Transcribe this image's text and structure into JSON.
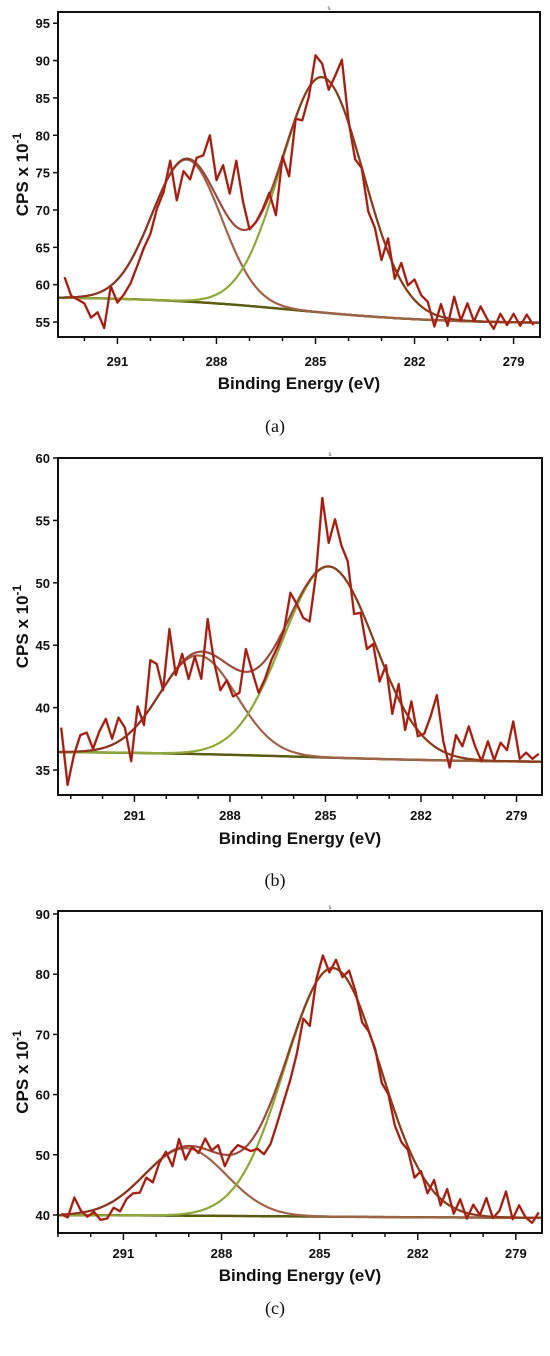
{
  "colors": {
    "raw": "#c0291c",
    "envelope": "#8a2a1a",
    "peak_cc": "#8fa83a",
    "peak_oc": "#a0634a",
    "background": "#5a5a10"
  },
  "chart_data": [
    {
      "type": "line",
      "caption": "(a)",
      "xlabel": "Binding Energy (eV)",
      "ylabel": "CPS x 10",
      "ylabel_exp": "-1",
      "xlim": [
        292.8,
        278.2
      ],
      "ylim": [
        53.0,
        96.5
      ],
      "xticks": [
        291,
        288,
        285,
        282,
        279
      ],
      "yticks": [
        55,
        60,
        65,
        70,
        75,
        80,
        85,
        90,
        95
      ],
      "baseline": {
        "start": 58.4,
        "end": 54.8,
        "center": 285.6,
        "width": 2.2
      },
      "peaks": [
        {
          "center": 288.9,
          "height": 19.0,
          "sigma": 1.05
        },
        {
          "center": 284.8,
          "height": 31.5,
          "sigma": 1.25
        }
      ],
      "raw": [
        [
          292.6,
          61.0
        ],
        [
          292.4,
          58.5
        ],
        [
          292.2,
          58.0
        ],
        [
          292.0,
          57.5
        ],
        [
          291.8,
          55.6
        ],
        [
          291.6,
          56.3
        ],
        [
          291.4,
          54.2
        ],
        [
          291.2,
          59.8
        ],
        [
          291.0,
          57.6
        ],
        [
          290.8,
          58.7
        ],
        [
          290.6,
          60.2
        ],
        [
          290.4,
          62.5
        ],
        [
          290.2,
          64.9
        ],
        [
          290.0,
          66.8
        ],
        [
          289.8,
          70.2
        ],
        [
          289.6,
          72.4
        ],
        [
          289.4,
          76.6
        ],
        [
          289.2,
          71.3
        ],
        [
          289.0,
          75.2
        ],
        [
          288.8,
          74.1
        ],
        [
          288.6,
          77.0
        ],
        [
          288.4,
          77.3
        ],
        [
          288.2,
          80.0
        ],
        [
          288.0,
          74.0
        ],
        [
          287.8,
          76.0
        ],
        [
          287.6,
          72.2
        ],
        [
          287.4,
          76.6
        ],
        [
          287.2,
          71.2
        ],
        [
          287.0,
          67.4
        ],
        [
          286.8,
          68.4
        ],
        [
          286.6,
          70.1
        ],
        [
          286.4,
          72.3
        ],
        [
          286.2,
          69.3
        ],
        [
          286.0,
          77.2
        ],
        [
          285.8,
          74.5
        ],
        [
          285.6,
          82.2
        ],
        [
          285.4,
          82.0
        ],
        [
          285.2,
          85.2
        ],
        [
          285.0,
          90.7
        ],
        [
          284.8,
          89.6
        ],
        [
          284.6,
          86.1
        ],
        [
          284.4,
          88.0
        ],
        [
          284.2,
          90.1
        ],
        [
          284.0,
          82.0
        ],
        [
          283.8,
          76.8
        ],
        [
          283.6,
          75.6
        ],
        [
          283.4,
          69.8
        ],
        [
          283.2,
          67.6
        ],
        [
          283.0,
          63.3
        ],
        [
          282.8,
          66.2
        ],
        [
          282.6,
          60.8
        ],
        [
          282.4,
          62.9
        ],
        [
          282.2,
          59.9
        ],
        [
          282.0,
          60.7
        ],
        [
          281.8,
          58.6
        ],
        [
          281.6,
          57.7
        ],
        [
          281.4,
          54.4
        ],
        [
          281.2,
          57.4
        ],
        [
          281.0,
          54.5
        ],
        [
          280.8,
          58.4
        ],
        [
          280.6,
          55.2
        ],
        [
          280.4,
          57.5
        ],
        [
          280.2,
          55.1
        ],
        [
          280.0,
          57.1
        ],
        [
          279.8,
          55.4
        ],
        [
          279.6,
          54.1
        ],
        [
          279.4,
          56.1
        ],
        [
          279.2,
          54.6
        ],
        [
          279.0,
          56.1
        ],
        [
          278.8,
          54.5
        ],
        [
          278.6,
          56.0
        ],
        [
          278.4,
          54.6
        ]
      ]
    },
    {
      "type": "line",
      "caption": "(b)",
      "xlabel": "Binding Energy (eV)",
      "ylabel": "CPS x 10",
      "ylabel_exp": "-1",
      "xlim": [
        293.4,
        278.2
      ],
      "ylim": [
        33.0,
        60.0
      ],
      "xticks": [
        291,
        288,
        285,
        282,
        279
      ],
      "yticks": [
        35,
        40,
        45,
        50,
        55,
        60
      ],
      "baseline": {
        "start": 36.5,
        "end": 35.6,
        "center": 285.6,
        "width": 3.0
      },
      "peaks": [
        {
          "center": 289.0,
          "height": 7.9,
          "sigma": 1.2
        },
        {
          "center": 284.9,
          "height": 15.3,
          "sigma": 1.45
        }
      ],
      "raw": [
        [
          293.3,
          38.4
        ],
        [
          293.1,
          33.8
        ],
        [
          292.9,
          36.2
        ],
        [
          292.7,
          37.8
        ],
        [
          292.5,
          38.0
        ],
        [
          292.3,
          36.7
        ],
        [
          292.1,
          38.1
        ],
        [
          291.9,
          39.1
        ],
        [
          291.7,
          37.5
        ],
        [
          291.5,
          39.2
        ],
        [
          291.3,
          38.4
        ],
        [
          291.1,
          35.7
        ],
        [
          290.9,
          40.1
        ],
        [
          290.7,
          38.6
        ],
        [
          290.5,
          43.8
        ],
        [
          290.3,
          43.5
        ],
        [
          290.1,
          41.4
        ],
        [
          289.9,
          46.3
        ],
        [
          289.7,
          42.6
        ],
        [
          289.5,
          44.3
        ],
        [
          289.3,
          42.3
        ],
        [
          289.1,
          44.1
        ],
        [
          288.9,
          42.3
        ],
        [
          288.7,
          47.1
        ],
        [
          288.5,
          43.7
        ],
        [
          288.3,
          41.4
        ],
        [
          288.1,
          42.2
        ],
        [
          287.9,
          40.9
        ],
        [
          287.7,
          41.2
        ],
        [
          287.5,
          44.7
        ],
        [
          287.3,
          42.9
        ],
        [
          287.1,
          41.2
        ],
        [
          286.9,
          42.3
        ],
        [
          286.7,
          43.8
        ],
        [
          286.5,
          44.9
        ],
        [
          286.3,
          46.2
        ],
        [
          286.1,
          49.2
        ],
        [
          285.9,
          48.3
        ],
        [
          285.7,
          47.2
        ],
        [
          285.5,
          46.9
        ],
        [
          285.3,
          50.6
        ],
        [
          285.1,
          56.8
        ],
        [
          284.9,
          53.2
        ],
        [
          284.7,
          55.1
        ],
        [
          284.5,
          53.0
        ],
        [
          284.3,
          51.7
        ],
        [
          284.1,
          47.5
        ],
        [
          283.9,
          47.6
        ],
        [
          283.7,
          44.7
        ],
        [
          283.5,
          45.1
        ],
        [
          283.3,
          42.1
        ],
        [
          283.1,
          43.4
        ],
        [
          282.9,
          39.5
        ],
        [
          282.7,
          41.9
        ],
        [
          282.5,
          38.2
        ],
        [
          282.3,
          40.5
        ],
        [
          282.1,
          37.7
        ],
        [
          281.9,
          37.9
        ],
        [
          281.7,
          39.3
        ],
        [
          281.5,
          41.0
        ],
        [
          281.3,
          37.3
        ],
        [
          281.1,
          35.2
        ],
        [
          280.9,
          37.8
        ],
        [
          280.7,
          36.9
        ],
        [
          280.5,
          38.5
        ],
        [
          280.3,
          36.9
        ],
        [
          280.1,
          35.7
        ],
        [
          279.9,
          37.3
        ],
        [
          279.7,
          35.8
        ],
        [
          279.5,
          37.2
        ],
        [
          279.3,
          36.6
        ],
        [
          279.1,
          38.9
        ],
        [
          278.9,
          35.9
        ],
        [
          278.7,
          36.4
        ],
        [
          278.5,
          35.9
        ],
        [
          278.3,
          36.3
        ]
      ]
    },
    {
      "type": "line",
      "caption": "(c)",
      "xlabel": "Binding Energy (eV)",
      "ylabel": "CPS x 10",
      "ylabel_exp": "-1",
      "xlim": [
        293.0,
        278.2
      ],
      "ylim": [
        37.0,
        90.5
      ],
      "xticks": [
        291,
        288,
        285,
        282,
        279
      ],
      "yticks": [
        40,
        50,
        60,
        70,
        80,
        90
      ],
      "baseline": {
        "start": 40.0,
        "end": 39.5,
        "center": 285.6,
        "width": 3.0
      },
      "peaks": [
        {
          "center": 289.1,
          "height": 11.2,
          "sigma": 1.25
        },
        {
          "center": 284.6,
          "height": 41.3,
          "sigma": 1.45
        }
      ],
      "raw": [
        [
          292.9,
          40.1
        ],
        [
          292.7,
          39.6
        ],
        [
          292.5,
          42.9
        ],
        [
          292.3,
          40.7
        ],
        [
          292.1,
          39.7
        ],
        [
          291.9,
          40.5
        ],
        [
          291.7,
          39.2
        ],
        [
          291.5,
          39.4
        ],
        [
          291.3,
          41.2
        ],
        [
          291.1,
          40.6
        ],
        [
          290.9,
          42.7
        ],
        [
          290.7,
          43.6
        ],
        [
          290.5,
          43.7
        ],
        [
          290.3,
          46.2
        ],
        [
          290.1,
          45.4
        ],
        [
          289.9,
          48.7
        ],
        [
          289.7,
          50.5
        ],
        [
          289.5,
          48.1
        ],
        [
          289.3,
          52.6
        ],
        [
          289.1,
          49.2
        ],
        [
          288.9,
          51.3
        ],
        [
          288.7,
          50.3
        ],
        [
          288.5,
          52.7
        ],
        [
          288.3,
          50.7
        ],
        [
          288.1,
          51.6
        ],
        [
          287.9,
          48.1
        ],
        [
          287.7,
          50.4
        ],
        [
          287.5,
          51.6
        ],
        [
          287.3,
          51.1
        ],
        [
          287.1,
          50.6
        ],
        [
          286.9,
          51.0
        ],
        [
          286.7,
          50.1
        ],
        [
          286.5,
          51.8
        ],
        [
          286.3,
          55.2
        ],
        [
          286.1,
          58.8
        ],
        [
          285.9,
          62.4
        ],
        [
          285.7,
          66.7
        ],
        [
          285.5,
          72.6
        ],
        [
          285.3,
          71.4
        ],
        [
          285.1,
          79.2
        ],
        [
          284.9,
          83.1
        ],
        [
          284.7,
          80.3
        ],
        [
          284.5,
          82.4
        ],
        [
          284.3,
          79.5
        ],
        [
          284.1,
          80.6
        ],
        [
          283.9,
          77.1
        ],
        [
          283.7,
          72.0
        ],
        [
          283.5,
          70.5
        ],
        [
          283.3,
          67.6
        ],
        [
          283.1,
          61.9
        ],
        [
          282.9,
          60.1
        ],
        [
          282.7,
          54.9
        ],
        [
          282.5,
          52.1
        ],
        [
          282.3,
          50.8
        ],
        [
          282.1,
          46.2
        ],
        [
          281.9,
          47.3
        ],
        [
          281.7,
          43.6
        ],
        [
          281.5,
          45.8
        ],
        [
          281.3,
          41.6
        ],
        [
          281.1,
          44.3
        ],
        [
          280.9,
          40.2
        ],
        [
          280.7,
          42.6
        ],
        [
          280.5,
          39.4
        ],
        [
          280.3,
          41.7
        ],
        [
          280.1,
          40.0
        ],
        [
          279.9,
          42.8
        ],
        [
          279.7,
          39.5
        ],
        [
          279.5,
          40.7
        ],
        [
          279.3,
          43.9
        ],
        [
          279.1,
          39.3
        ],
        [
          278.9,
          41.6
        ],
        [
          278.7,
          39.6
        ],
        [
          278.5,
          38.7
        ],
        [
          278.3,
          40.4
        ]
      ]
    }
  ]
}
